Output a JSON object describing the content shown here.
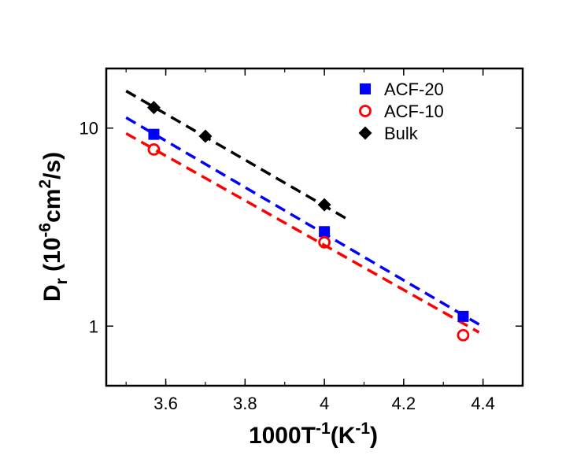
{
  "chart_data": {
    "type": "scatter",
    "xlabel": {
      "main": "1000T",
      "sup1": "-1",
      "paren_open": "(K",
      "sup2": "-1",
      "paren_close": ")"
    },
    "ylabel": {
      "main": "D",
      "sub": "r",
      "open": " (10",
      "sup1": "-6",
      "unit": "cm",
      "sup2": "2",
      "close": "/s)"
    },
    "xlim": [
      3.45,
      4.5
    ],
    "ylim": [
      0.5,
      20
    ],
    "yscale": "log",
    "x_ticks": [
      {
        "value": 3.6,
        "label": "3.6"
      },
      {
        "value": 3.8,
        "label": "3.8"
      },
      {
        "value": 4.0,
        "label": "4"
      },
      {
        "value": 4.2,
        "label": "4.2"
      },
      {
        "value": 4.4,
        "label": "4.4"
      }
    ],
    "y_ticks": [
      {
        "value": 1,
        "label": "1"
      },
      {
        "value": 10,
        "label": "10"
      }
    ],
    "legend_position": "top-right",
    "series": [
      {
        "name": "ACF-20",
        "marker": "square",
        "color": "#0000ff",
        "x": [
          3.57,
          4.0,
          4.35
        ],
        "y": [
          9.3,
          3.0,
          1.12
        ],
        "fit": {
          "x": [
            3.5,
            4.39
          ],
          "y": [
            11.3,
            1.02
          ]
        }
      },
      {
        "name": "ACF-10",
        "marker": "circle-open",
        "color": "#ff0000",
        "x": [
          3.57,
          4.0,
          4.35
        ],
        "y": [
          7.8,
          2.65,
          0.9
        ],
        "fit": {
          "x": [
            3.5,
            4.39
          ],
          "y": [
            9.4,
            0.93
          ]
        }
      },
      {
        "name": "Bulk",
        "marker": "diamond",
        "color": "#000000",
        "x": [
          3.57,
          3.7,
          4.0
        ],
        "y": [
          12.7,
          9.1,
          4.1
        ],
        "fit": {
          "x": [
            3.5,
            4.06
          ],
          "y": [
            15.4,
            3.45
          ]
        }
      }
    ]
  }
}
